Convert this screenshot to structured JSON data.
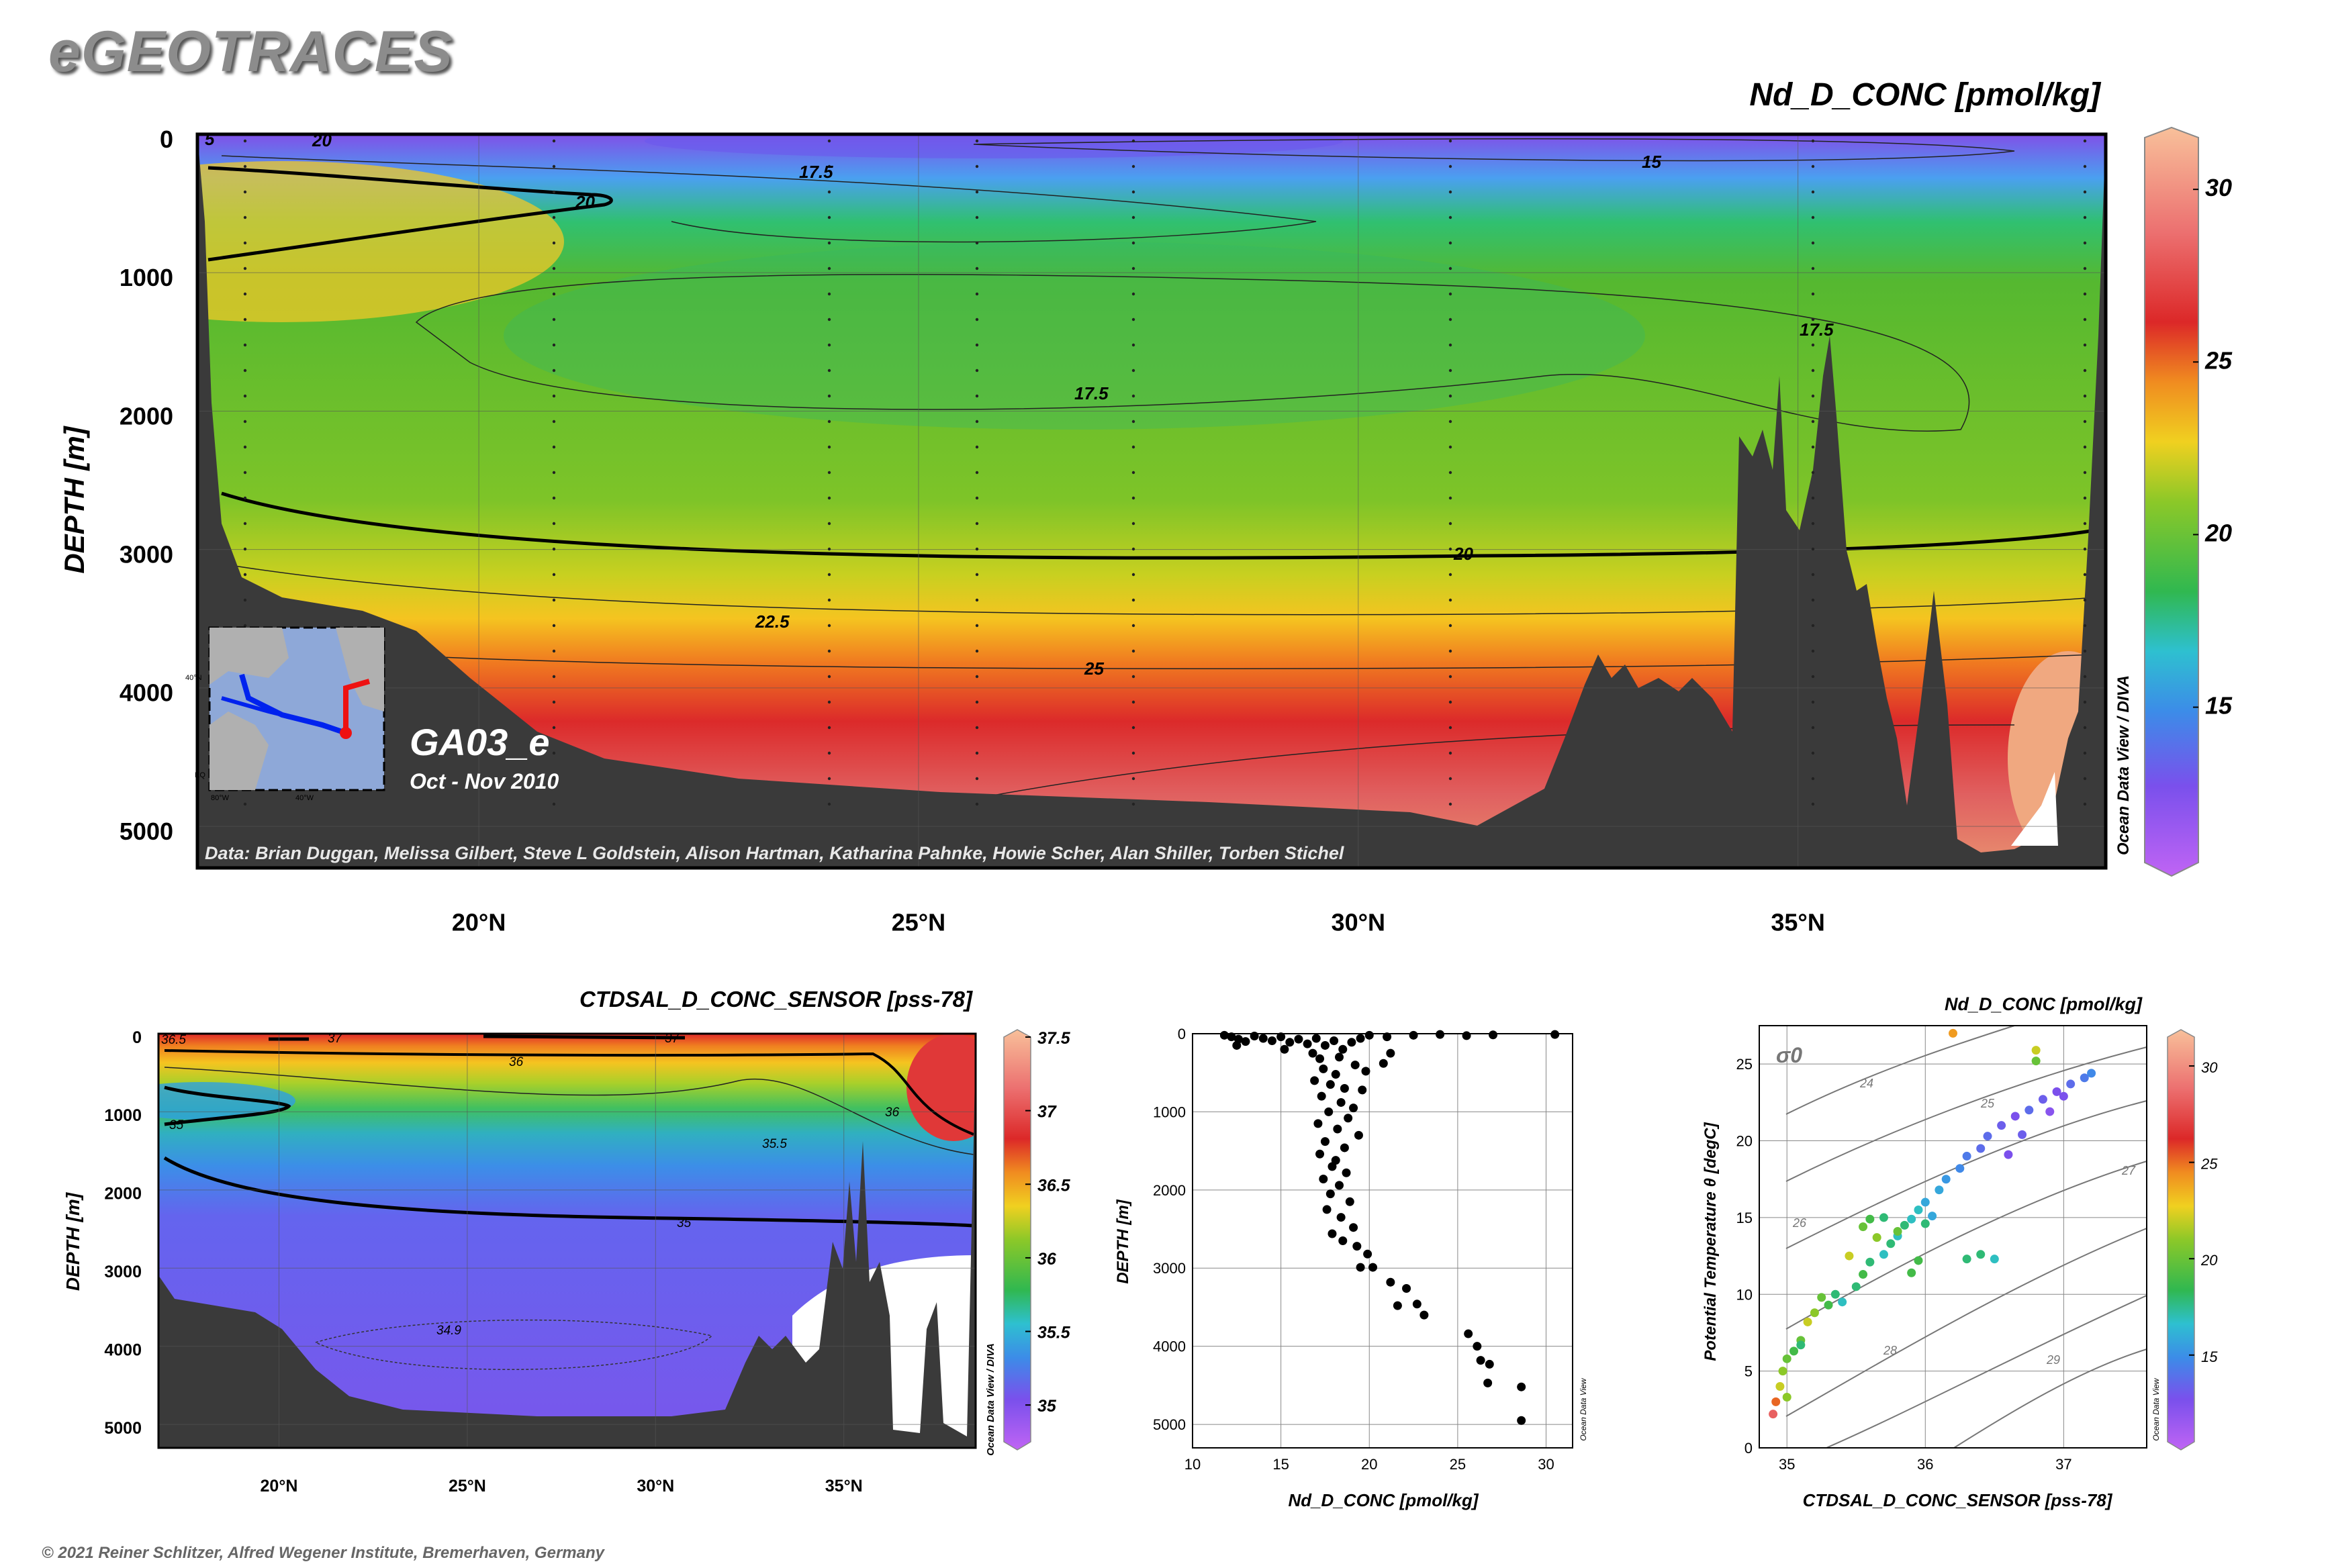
{
  "header": {
    "brand": "eGEOTRACES"
  },
  "footer": {
    "copyright": "© 2021 Reiner Schlitzer, Alfred Wegener Institute, Bremerhaven, Germany"
  },
  "colors": {
    "bathymetry": "#3a3a3a",
    "contour": "#000000",
    "grid": "#555555"
  },
  "chart_data": [
    {
      "type": "heatmap",
      "title": "Nd_D_CONC [pmol/kg]",
      "ylabel": "DEPTH [m]",
      "y_ticks": [
        "0",
        "1000",
        "2000",
        "3000",
        "4000",
        "5000"
      ],
      "x_ticks": [
        "20°N",
        "25°N",
        "30°N",
        "35°N"
      ],
      "x_tick_values": [
        20,
        25,
        30,
        35
      ],
      "xlim": [
        16.8,
        38.5
      ],
      "ylim": [
        0,
        5300
      ],
      "colorbar": {
        "ticks": [
          "15",
          "20",
          "25",
          "30"
        ],
        "range": [
          10.5,
          31.5
        ]
      },
      "contour_labels": [
        "5",
        "20",
        "20",
        "17.5",
        "15",
        "17.5",
        "17.5",
        "20",
        "22.5",
        "25"
      ],
      "inset": {
        "cruise": "GA03_e",
        "dates": "Oct - Nov 2010",
        "map_labels": [
          "40°N",
          "80°W",
          "40°W",
          "EQ"
        ]
      },
      "credit": "Data: Brian Duggan, Melissa Gilbert, Steve L Goldstein, Alison Hartman, Katharina Pahnke, Howie Scher, Alan Shiller, Torben Stichel",
      "watermark": "Ocean Data View / DIVA"
    },
    {
      "type": "heatmap",
      "title": "CTDSAL_D_CONC_SENSOR [pss-78]",
      "ylabel": "DEPTH [m]",
      "y_ticks": [
        "0",
        "1000",
        "2000",
        "3000",
        "4000",
        "5000"
      ],
      "x_ticks": [
        "20°N",
        "25°N",
        "30°N",
        "35°N"
      ],
      "x_tick_values": [
        20,
        25,
        30,
        35
      ],
      "xlim": [
        16.8,
        38.5
      ],
      "ylim": [
        0,
        5300
      ],
      "colorbar": {
        "ticks": [
          "35",
          "35.5",
          "36",
          "36.5",
          "37",
          "37.5"
        ],
        "range": [
          34.75,
          37.5
        ]
      },
      "contour_labels": [
        "36.5",
        "37",
        "37",
        "36",
        "35",
        "36",
        "35.5",
        "35",
        "34.9"
      ],
      "watermark": "Ocean Data View / DIVA"
    },
    {
      "type": "scatter",
      "xlabel": "Nd_D_CONC [pmol/kg]",
      "ylabel": "DEPTH [m]",
      "x_ticks": [
        "10",
        "15",
        "20",
        "25",
        "30"
      ],
      "y_ticks": [
        "0",
        "1000",
        "2000",
        "3000",
        "4000",
        "5000"
      ],
      "xlim": [
        10,
        31.5
      ],
      "ylim": [
        0,
        5300
      ],
      "watermark": "Ocean Data View",
      "points": [
        [
          11.8,
          20
        ],
        [
          12.2,
          40
        ],
        [
          12.6,
          70
        ],
        [
          13,
          100
        ],
        [
          13.5,
          30
        ],
        [
          14,
          60
        ],
        [
          14.5,
          90
        ],
        [
          15,
          40
        ],
        [
          15.5,
          110
        ],
        [
          16,
          70
        ],
        [
          16.5,
          130
        ],
        [
          17,
          60
        ],
        [
          17.5,
          150
        ],
        [
          18,
          90
        ],
        [
          18.5,
          200
        ],
        [
          19,
          110
        ],
        [
          19.5,
          60
        ],
        [
          20,
          20
        ],
        [
          21,
          40
        ],
        [
          22.5,
          20
        ],
        [
          24,
          10
        ],
        [
          25.5,
          25
        ],
        [
          27,
          15
        ],
        [
          30.5,
          10
        ],
        [
          12.5,
          150
        ],
        [
          15.2,
          200
        ],
        [
          16.8,
          250
        ],
        [
          17.2,
          320
        ],
        [
          18.3,
          300
        ],
        [
          19.2,
          400
        ],
        [
          20.8,
          380
        ],
        [
          21.2,
          250
        ],
        [
          17.4,
          450
        ],
        [
          18.1,
          520
        ],
        [
          19.8,
          480
        ],
        [
          16.9,
          600
        ],
        [
          17.8,
          650
        ],
        [
          18.6,
          700
        ],
        [
          19.6,
          720
        ],
        [
          17.3,
          800
        ],
        [
          18.4,
          880
        ],
        [
          19.1,
          950
        ],
        [
          17.7,
          1000
        ],
        [
          18.8,
          1080
        ],
        [
          17.1,
          1150
        ],
        [
          18.2,
          1220
        ],
        [
          19.4,
          1300
        ],
        [
          17.5,
          1380
        ],
        [
          18.6,
          1460
        ],
        [
          17.2,
          1540
        ],
        [
          18.1,
          1620
        ],
        [
          17.9,
          1700
        ],
        [
          18.7,
          1780
        ],
        [
          17.4,
          1860
        ],
        [
          18.3,
          1940
        ],
        [
          17.8,
          2050
        ],
        [
          18.9,
          2150
        ],
        [
          17.6,
          2250
        ],
        [
          18.4,
          2350
        ],
        [
          19.1,
          2480
        ],
        [
          17.9,
          2560
        ],
        [
          18.5,
          2650
        ],
        [
          19.3,
          2720
        ],
        [
          19.9,
          2820
        ],
        [
          19.5,
          2990
        ],
        [
          20.2,
          2990
        ],
        [
          21.2,
          3180
        ],
        [
          22.1,
          3260
        ],
        [
          22.7,
          3460
        ],
        [
          21.6,
          3480
        ],
        [
          23.1,
          3600
        ],
        [
          25.6,
          3840
        ],
        [
          26.1,
          4000
        ],
        [
          26.3,
          4180
        ],
        [
          26.8,
          4230
        ],
        [
          28.6,
          4520
        ],
        [
          26.7,
          4470
        ],
        [
          28.6,
          4950
        ]
      ]
    },
    {
      "type": "scatter",
      "title": "Nd_D_CONC [pmol/kg]",
      "xlabel": "CTDSAL_D_CONC_SENSOR [pss-78]",
      "ylabel": "Potential Temperature θ [degC]",
      "x_ticks": [
        "35",
        "36",
        "37"
      ],
      "y_ticks": [
        "0",
        "5",
        "10",
        "15",
        "20",
        "25"
      ],
      "xlim": [
        34.8,
        37.6
      ],
      "ylim": [
        0,
        27.5
      ],
      "isopycnal_labels": [
        "σ0",
        "24",
        "25",
        "26",
        "27",
        "28",
        "29"
      ],
      "colorbar": {
        "ticks": [
          "15",
          "20",
          "25",
          "30"
        ],
        "range": [
          10.5,
          31.5
        ]
      },
      "watermark": "Ocean Data View",
      "points": [
        [
          34.9,
          2.2,
          28
        ],
        [
          34.92,
          3,
          25
        ],
        [
          34.95,
          4,
          22
        ],
        [
          34.97,
          5,
          21
        ],
        [
          35,
          5.8,
          20
        ],
        [
          35.05,
          6.3,
          19
        ],
        [
          35.1,
          7,
          20
        ],
        [
          35.15,
          8.2,
          22
        ],
        [
          35.2,
          8.8,
          21
        ],
        [
          35.3,
          9.3,
          19
        ],
        [
          35.35,
          10,
          18
        ],
        [
          35.4,
          9.5,
          17
        ],
        [
          35.5,
          10.5,
          18
        ],
        [
          35.55,
          11.3,
          19
        ],
        [
          35.6,
          12.1,
          18
        ],
        [
          35.7,
          12.6,
          17
        ],
        [
          35.75,
          13.3,
          18
        ],
        [
          35.8,
          13.8,
          17
        ],
        [
          35.85,
          14.5,
          18
        ],
        [
          35.9,
          14.9,
          17
        ],
        [
          35.95,
          15.5,
          17
        ],
        [
          36.0,
          16,
          16
        ],
        [
          36.1,
          16.8,
          16
        ],
        [
          36.15,
          17.5,
          15.5
        ],
        [
          36.25,
          18.2,
          15
        ],
        [
          36.3,
          19,
          14.5
        ],
        [
          36.4,
          19.5,
          14
        ],
        [
          36.45,
          20.3,
          14
        ],
        [
          36.55,
          21,
          13.5
        ],
        [
          36.65,
          21.6,
          13
        ],
        [
          36.75,
          22,
          14
        ],
        [
          36.85,
          22.7,
          13.5
        ],
        [
          36.95,
          23.2,
          13
        ],
        [
          37.05,
          23.7,
          14
        ],
        [
          37.15,
          24.1,
          14.5
        ],
        [
          37.2,
          24.4,
          15
        ],
        [
          36.8,
          25.2,
          20
        ],
        [
          36.8,
          25.9,
          22
        ],
        [
          36.2,
          27,
          24
        ],
        [
          35.55,
          14.4,
          20
        ],
        [
          35.6,
          14.9,
          19
        ],
        [
          35.7,
          15,
          18
        ],
        [
          36.3,
          12.3,
          18
        ],
        [
          36.4,
          12.6,
          18
        ],
        [
          36.5,
          12.3,
          17
        ],
        [
          35.9,
          11.4,
          19
        ],
        [
          35.0,
          3.3,
          21
        ],
        [
          35.1,
          6.7,
          18
        ],
        [
          35.25,
          9.8,
          20
        ],
        [
          35.45,
          12.5,
          22
        ],
        [
          35.65,
          13.7,
          21
        ],
        [
          35.8,
          14.1,
          20
        ],
        [
          36.0,
          14.6,
          18
        ],
        [
          36.05,
          15.1,
          16
        ],
        [
          35.95,
          12.2,
          19
        ],
        [
          36.6,
          19.1,
          13
        ],
        [
          36.7,
          20.4,
          13.5
        ],
        [
          36.9,
          21.9,
          12.5
        ],
        [
          37.0,
          22.9,
          13
        ]
      ]
    }
  ]
}
